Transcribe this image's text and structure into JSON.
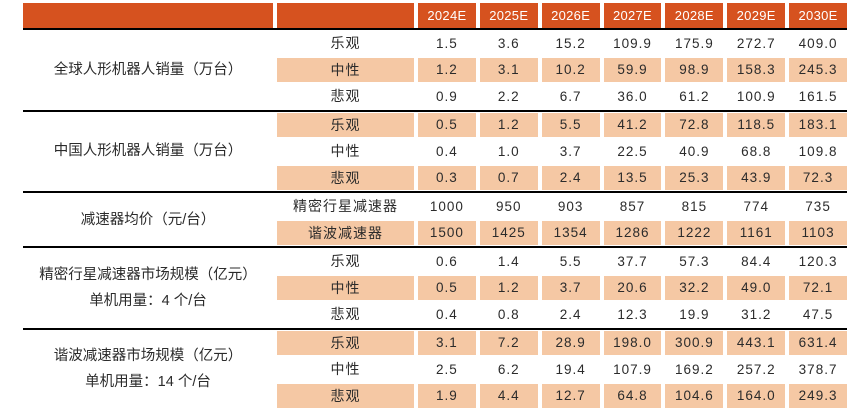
{
  "colors": {
    "header_bg": "#d6521f",
    "header_text": "#ffffff",
    "highlight_bg": "#f5c8a4",
    "body_text": "#2b2b2b",
    "rule": "#000000"
  },
  "chart_data": {
    "type": "table",
    "columns": [
      "2024E",
      "2025E",
      "2026E",
      "2027E",
      "2028E",
      "2029E",
      "2030E"
    ],
    "groups": [
      {
        "label_lines": [
          "全球人形机器人销量（万台）"
        ],
        "rows": [
          {
            "label": "乐观",
            "highlight": false,
            "values": [
              "1.5",
              "3.6",
              "15.2",
              "109.9",
              "175.9",
              "272.7",
              "409.0"
            ]
          },
          {
            "label": "中性",
            "highlight": true,
            "values": [
              "1.2",
              "3.1",
              "10.2",
              "59.9",
              "98.9",
              "158.3",
              "245.3"
            ]
          },
          {
            "label": "悲观",
            "highlight": false,
            "values": [
              "0.9",
              "2.2",
              "6.7",
              "36.0",
              "61.2",
              "100.9",
              "161.5"
            ]
          }
        ]
      },
      {
        "label_lines": [
          "中国人形机器人销量（万台）"
        ],
        "rows": [
          {
            "label": "乐观",
            "highlight": true,
            "values": [
              "0.5",
              "1.2",
              "5.5",
              "41.2",
              "72.8",
              "118.5",
              "183.1"
            ]
          },
          {
            "label": "中性",
            "highlight": false,
            "values": [
              "0.4",
              "1.0",
              "3.7",
              "22.5",
              "40.9",
              "68.8",
              "109.8"
            ]
          },
          {
            "label": "悲观",
            "highlight": true,
            "values": [
              "0.3",
              "0.7",
              "2.4",
              "13.5",
              "25.3",
              "43.9",
              "72.3"
            ]
          }
        ]
      },
      {
        "label_lines": [
          "减速器均价（元/台）"
        ],
        "rows": [
          {
            "label": "精密行星减速器",
            "highlight": false,
            "values": [
              "1000",
              "950",
              "903",
              "857",
              "815",
              "774",
              "735"
            ]
          },
          {
            "label": "谐波减速器",
            "highlight": true,
            "values": [
              "1500",
              "1425",
              "1354",
              "1286",
              "1222",
              "1161",
              "1103"
            ]
          }
        ]
      },
      {
        "label_lines": [
          "精密行星减速器市场规模（亿元）",
          "单机用量：4 个/台"
        ],
        "rows": [
          {
            "label": "乐观",
            "highlight": false,
            "values": [
              "0.6",
              "1.4",
              "5.5",
              "37.7",
              "57.3",
              "84.4",
              "120.3"
            ]
          },
          {
            "label": "中性",
            "highlight": true,
            "values": [
              "0.5",
              "1.2",
              "3.7",
              "20.6",
              "32.2",
              "49.0",
              "72.1"
            ]
          },
          {
            "label": "悲观",
            "highlight": false,
            "values": [
              "0.4",
              "0.8",
              "2.4",
              "12.3",
              "19.9",
              "31.2",
              "47.5"
            ]
          }
        ]
      },
      {
        "label_lines": [
          "谐波减速器市场规模（亿元）",
          "单机用量：14 个/台"
        ],
        "rows": [
          {
            "label": "乐观",
            "highlight": true,
            "values": [
              "3.1",
              "7.2",
              "28.9",
              "198.0",
              "300.9",
              "443.1",
              "631.4"
            ]
          },
          {
            "label": "中性",
            "highlight": false,
            "values": [
              "2.5",
              "6.2",
              "19.4",
              "107.9",
              "169.2",
              "257.2",
              "378.7"
            ]
          },
          {
            "label": "悲观",
            "highlight": true,
            "values": [
              "1.9",
              "4.4",
              "12.7",
              "64.8",
              "104.6",
              "164.0",
              "249.3"
            ]
          }
        ]
      }
    ]
  }
}
